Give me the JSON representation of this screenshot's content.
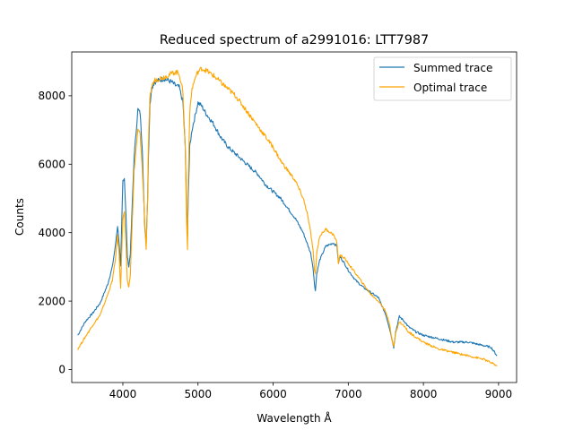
{
  "chart_data": {
    "type": "line",
    "title": "Reduced spectrum of a2991016: LTT7987",
    "xlabel": "Wavelength Å",
    "ylabel": "Counts",
    "xlim": [
      3320,
      9240
    ],
    "ylim": [
      -380,
      9280
    ],
    "xticks": [
      4000,
      5000,
      6000,
      7000,
      8000,
      9000
    ],
    "yticks": [
      0,
      2000,
      4000,
      6000,
      8000
    ],
    "grid": false,
    "legend": "top-right",
    "series": [
      {
        "name": "Summed trace",
        "color": "#1f77b4",
        "x": [
          3400,
          3500,
          3600,
          3700,
          3800,
          3860,
          3900,
          3930,
          3950,
          3970,
          4000,
          4020,
          4040,
          4060,
          4080,
          4100,
          4150,
          4200,
          4230,
          4260,
          4290,
          4310,
          4330,
          4340,
          4360,
          4380,
          4420,
          4480,
          4550,
          4600,
          4650,
          4700,
          4750,
          4800,
          4830,
          4850,
          4861,
          4870,
          4890,
          4920,
          4960,
          5000,
          5050,
          5100,
          5200,
          5300,
          5400,
          5500,
          5600,
          5700,
          5800,
          5900,
          6000,
          6100,
          6200,
          6300,
          6400,
          6450,
          6500,
          6530,
          6550,
          6563,
          6580,
          6620,
          6700,
          6800,
          6850,
          6869,
          6890,
          6950,
          7000,
          7100,
          7200,
          7300,
          7400,
          7500,
          7550,
          7580,
          7605,
          7630,
          7680,
          7750,
          7800,
          7900,
          8000,
          8100,
          8200,
          8300,
          8400,
          8500,
          8600,
          8700,
          8800,
          8900,
          8980
        ],
        "y": [
          1000,
          1400,
          1650,
          1950,
          2500,
          3000,
          3600,
          4200,
          3700,
          3000,
          5500,
          5600,
          4600,
          3300,
          3000,
          3400,
          6200,
          7600,
          7500,
          6400,
          4200,
          3700,
          5000,
          6200,
          7700,
          8200,
          8400,
          8450,
          8500,
          8450,
          8400,
          8300,
          8250,
          7800,
          6500,
          4700,
          3900,
          5000,
          6500,
          7000,
          7400,
          7800,
          7700,
          7500,
          7200,
          6800,
          6500,
          6300,
          6100,
          5900,
          5700,
          5400,
          5200,
          5000,
          4700,
          4400,
          4000,
          3700,
          3400,
          3000,
          2500,
          2300,
          2800,
          3200,
          3600,
          3700,
          3600,
          3100,
          3300,
          3100,
          2900,
          2600,
          2400,
          2250,
          2100,
          1600,
          1200,
          900,
          650,
          1100,
          1550,
          1400,
          1250,
          1100,
          1000,
          950,
          900,
          850,
          800,
          800,
          800,
          750,
          700,
          650,
          400
        ]
      },
      {
        "name": "Optimal trace",
        "color": "#ffa500",
        "x": [
          3400,
          3500,
          3600,
          3700,
          3800,
          3860,
          3900,
          3930,
          3950,
          3970,
          4000,
          4020,
          4040,
          4060,
          4080,
          4100,
          4150,
          4200,
          4230,
          4260,
          4290,
          4310,
          4330,
          4340,
          4360,
          4380,
          4420,
          4480,
          4550,
          4600,
          4650,
          4700,
          4750,
          4800,
          4830,
          4850,
          4861,
          4870,
          4890,
          4920,
          4960,
          5000,
          5050,
          5100,
          5200,
          5300,
          5400,
          5500,
          5600,
          5700,
          5800,
          5900,
          6000,
          6100,
          6200,
          6300,
          6400,
          6450,
          6500,
          6530,
          6550,
          6563,
          6580,
          6620,
          6700,
          6800,
          6850,
          6869,
          6890,
          6950,
          7000,
          7100,
          7200,
          7300,
          7400,
          7500,
          7550,
          7580,
          7605,
          7630,
          7680,
          7750,
          7800,
          7900,
          8000,
          8100,
          8200,
          8300,
          8400,
          8500,
          8600,
          8700,
          8800,
          8900,
          8980
        ],
        "y": [
          600,
          950,
          1300,
          1600,
          2200,
          2600,
          3200,
          3900,
          3400,
          2400,
          4400,
          4600,
          3700,
          2600,
          2400,
          2800,
          5800,
          7000,
          6900,
          5800,
          4400,
          3500,
          5000,
          6600,
          7900,
          8250,
          8450,
          8500,
          8550,
          8600,
          8650,
          8700,
          8650,
          8100,
          6500,
          4200,
          3500,
          5500,
          7500,
          8200,
          8500,
          8700,
          8800,
          8750,
          8600,
          8400,
          8200,
          8000,
          7700,
          7400,
          7100,
          6800,
          6500,
          6100,
          5800,
          5500,
          5000,
          4600,
          4000,
          3500,
          2900,
          2800,
          3400,
          3900,
          4100,
          3950,
          3700,
          3100,
          3350,
          3250,
          3100,
          2800,
          2500,
          2200,
          2000,
          1700,
          1300,
          900,
          700,
          1050,
          1400,
          1250,
          1100,
          950,
          800,
          700,
          600,
          550,
          500,
          450,
          400,
          350,
          300,
          200,
          100
        ]
      }
    ]
  }
}
